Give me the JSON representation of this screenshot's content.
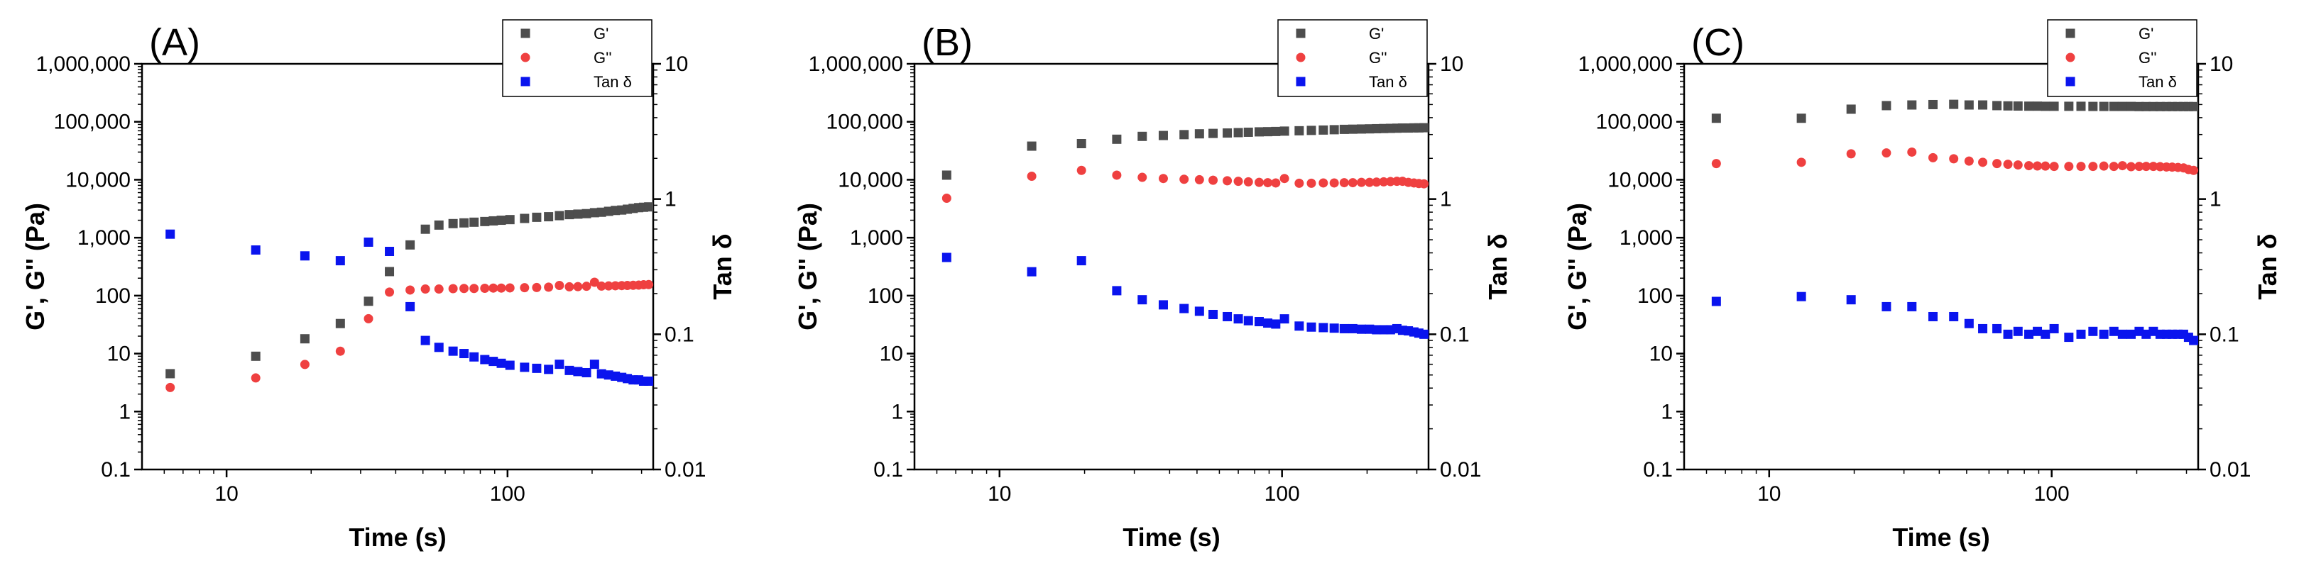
{
  "colors": {
    "gprime": "#4d4d4d",
    "gdouble": "#ef4040",
    "tan": "#0a14ee"
  },
  "legend": {
    "gprime": "G'",
    "gdouble": "G''",
    "tan": "Tan δ"
  },
  "chart_data": [
    {
      "type": "scatter",
      "panel_label": "(A)",
      "xlabel": "Time (s)",
      "ylabel": "G', G'' (Pa)",
      "y2label": "Tan δ",
      "xscale": "log",
      "yscale": "log",
      "y2scale": "log",
      "xlim": [
        5,
        330
      ],
      "ylim": [
        0.1,
        1000000
      ],
      "y2lim": [
        0.01,
        10
      ],
      "xticks": [
        10,
        100
      ],
      "xtick_labels": [
        "10",
        "100"
      ],
      "yticks": [
        0.1,
        1,
        10,
        100,
        1000,
        10000,
        100000,
        1000000
      ],
      "ytick_labels": [
        "0.1",
        "1",
        "10",
        "100",
        "1,000",
        "10,000",
        "100,000",
        "1,000,000"
      ],
      "y2ticks": [
        0.01,
        0.1,
        1,
        10
      ],
      "y2tick_labels": [
        "0.01",
        "0.1",
        "1",
        "10"
      ],
      "legend_position": "top-right",
      "series": [
        {
          "name": "G'",
          "axis": "left",
          "marker": "square",
          "color_key": "gprime",
          "x": [
            6.3,
            12.7,
            19,
            25.4,
            32,
            38,
            45,
            51,
            57,
            64,
            70,
            76,
            83,
            89,
            95,
            102,
            115,
            127,
            140,
            153,
            166,
            178,
            191,
            204,
            216,
            229,
            242,
            255,
            267,
            280,
            293,
            305,
            318
          ],
          "y": [
            4.5,
            9,
            18,
            33,
            80,
            260,
            750,
            1400,
            1650,
            1750,
            1800,
            1850,
            1900,
            1950,
            2000,
            2050,
            2150,
            2250,
            2300,
            2400,
            2500,
            2550,
            2600,
            2700,
            2750,
            2850,
            2950,
            3000,
            3100,
            3200,
            3300,
            3350,
            3400
          ]
        },
        {
          "name": "G''",
          "axis": "left",
          "marker": "circle",
          "color_key": "gdouble",
          "x": [
            6.3,
            12.7,
            19,
            25.4,
            32,
            38,
            45,
            51,
            57,
            64,
            70,
            76,
            83,
            89,
            95,
            102,
            115,
            127,
            140,
            153,
            166,
            178,
            191,
            204,
            216,
            229,
            242,
            255,
            267,
            280,
            293,
            305,
            318
          ],
          "y": [
            2.6,
            3.8,
            6.5,
            11,
            40,
            115,
            125,
            130,
            130,
            132,
            133,
            133,
            134,
            135,
            135,
            136,
            137,
            138,
            140,
            150,
            142,
            143,
            145,
            170,
            146,
            147,
            148,
            149,
            150,
            151,
            152,
            154,
            155
          ]
        },
        {
          "name": "Tan δ",
          "axis": "right",
          "marker": "square",
          "color_key": "tan",
          "x": [
            6.3,
            12.7,
            19,
            25.4,
            32,
            38,
            45,
            51,
            57,
            64,
            70,
            76,
            83,
            89,
            95,
            102,
            115,
            127,
            140,
            153,
            166,
            178,
            191,
            204,
            216,
            229,
            242,
            255,
            267,
            280,
            293,
            305,
            318
          ],
          "y": [
            0.55,
            0.42,
            0.38,
            0.35,
            0.48,
            0.41,
            0.16,
            0.09,
            0.08,
            0.075,
            0.072,
            0.068,
            0.065,
            0.063,
            0.061,
            0.059,
            0.057,
            0.056,
            0.055,
            0.06,
            0.054,
            0.053,
            0.052,
            0.06,
            0.051,
            0.05,
            0.049,
            0.048,
            0.047,
            0.046,
            0.046,
            0.045,
            0.045
          ]
        }
      ]
    },
    {
      "type": "scatter",
      "panel_label": "(B)",
      "xlabel": "Time (s)",
      "ylabel": "G', G'' (Pa)",
      "y2label": "Tan δ",
      "xscale": "log",
      "yscale": "log",
      "y2scale": "log",
      "xlim": [
        5,
        330
      ],
      "ylim": [
        0.1,
        1000000
      ],
      "y2lim": [
        0.01,
        10
      ],
      "xticks": [
        10,
        100
      ],
      "xtick_labels": [
        "10",
        "100"
      ],
      "yticks": [
        0.1,
        1,
        10,
        100,
        1000,
        10000,
        100000,
        1000000
      ],
      "ytick_labels": [
        "0.1",
        "1",
        "10",
        "100",
        "1,000",
        "10,000",
        "100,000",
        "1,000,000"
      ],
      "y2ticks": [
        0.01,
        0.1,
        1,
        10
      ],
      "y2tick_labels": [
        "0.01",
        "0.1",
        "1",
        "10"
      ],
      "legend_position": "top-right",
      "series": [
        {
          "name": "G'",
          "axis": "left",
          "marker": "square",
          "color_key": "gprime",
          "x": [
            6.5,
            13,
            19.5,
            26,
            32,
            38,
            45,
            51,
            57,
            64,
            70,
            76,
            83,
            89,
            95,
            102,
            115,
            127,
            140,
            153,
            166,
            178,
            191,
            204,
            216,
            229,
            242,
            255,
            267,
            280,
            293,
            305,
            318
          ],
          "y": [
            12000,
            38000,
            42000,
            50000,
            56000,
            58000,
            60000,
            62000,
            63000,
            64000,
            65000,
            66000,
            67000,
            67500,
            68000,
            69000,
            70000,
            71000,
            72000,
            73000,
            74000,
            74500,
            75000,
            75500,
            76000,
            76500,
            77000,
            77500,
            78000,
            78000,
            78500,
            78500,
            79000
          ]
        },
        {
          "name": "G''",
          "axis": "left",
          "marker": "circle",
          "color_key": "gdouble",
          "x": [
            6.5,
            13,
            19.5,
            26,
            32,
            38,
            45,
            51,
            57,
            64,
            70,
            76,
            83,
            89,
            95,
            102,
            115,
            127,
            140,
            153,
            166,
            178,
            191,
            204,
            216,
            229,
            242,
            255,
            267,
            280,
            293,
            305,
            318
          ],
          "y": [
            4800,
            11500,
            14500,
            12000,
            11000,
            10500,
            10200,
            10000,
            9800,
            9600,
            9400,
            9200,
            9000,
            8900,
            8800,
            10500,
            8700,
            8700,
            8800,
            8800,
            8900,
            8900,
            9000,
            9000,
            9100,
            9200,
            9300,
            9400,
            9400,
            9000,
            8800,
            8600,
            8500
          ]
        },
        {
          "name": "Tan δ",
          "axis": "right",
          "marker": "square",
          "color_key": "tan",
          "x": [
            6.5,
            13,
            19.5,
            26,
            32,
            38,
            45,
            51,
            57,
            64,
            70,
            76,
            83,
            89,
            95,
            102,
            115,
            127,
            140,
            153,
            166,
            178,
            191,
            204,
            216,
            229,
            242,
            255,
            267,
            280,
            293,
            305,
            318
          ],
          "y": [
            0.37,
            0.29,
            0.35,
            0.21,
            0.18,
            0.165,
            0.155,
            0.148,
            0.14,
            0.135,
            0.13,
            0.126,
            0.124,
            0.121,
            0.119,
            0.13,
            0.115,
            0.113,
            0.112,
            0.111,
            0.11,
            0.11,
            0.109,
            0.109,
            0.108,
            0.108,
            0.108,
            0.11,
            0.107,
            0.106,
            0.104,
            0.102,
            0.1
          ]
        }
      ]
    },
    {
      "type": "scatter",
      "panel_label": "(C)",
      "xlabel": "Time (s)",
      "ylabel": "G', G'' (Pa)",
      "y2label": "Tan δ",
      "xscale": "log",
      "yscale": "log",
      "y2scale": "log",
      "xlim": [
        5,
        330
      ],
      "ylim": [
        0.1,
        1000000
      ],
      "y2lim": [
        0.01,
        10
      ],
      "xticks": [
        10,
        100
      ],
      "xtick_labels": [
        "10",
        "100"
      ],
      "yticks": [
        0.1,
        1,
        10,
        100,
        1000,
        10000,
        100000,
        1000000
      ],
      "ytick_labels": [
        "0.1",
        "1",
        "10",
        "100",
        "1,000",
        "10,000",
        "100,000",
        "1,000,000"
      ],
      "y2ticks": [
        0.01,
        0.1,
        1,
        10
      ],
      "y2tick_labels": [
        "0.01",
        "0.1",
        "1",
        "10"
      ],
      "legend_position": "top-right",
      "series": [
        {
          "name": "G'",
          "axis": "left",
          "marker": "square",
          "color_key": "gprime",
          "x": [
            6.5,
            13,
            19.5,
            26,
            32,
            38,
            45,
            51,
            57,
            64,
            70,
            76,
            83,
            89,
            95,
            102,
            115,
            127,
            140,
            153,
            166,
            178,
            191,
            204,
            216,
            229,
            242,
            255,
            267,
            280,
            293,
            305,
            318
          ],
          "y": [
            115000,
            115000,
            165000,
            190000,
            195000,
            198000,
            200000,
            195000,
            195000,
            190000,
            188000,
            187000,
            186000,
            186000,
            185000,
            185000,
            185000,
            185000,
            184000,
            184000,
            184000,
            184000,
            184000,
            183000,
            183000,
            183000,
            183000,
            183000,
            183000,
            183000,
            183000,
            183000,
            183000
          ]
        },
        {
          "name": "G''",
          "axis": "left",
          "marker": "circle",
          "color_key": "gdouble",
          "x": [
            6.5,
            13,
            19.5,
            26,
            32,
            38,
            45,
            51,
            57,
            64,
            70,
            76,
            83,
            89,
            95,
            102,
            115,
            127,
            140,
            153,
            166,
            178,
            191,
            204,
            216,
            229,
            242,
            255,
            267,
            280,
            293,
            305,
            318
          ],
          "y": [
            19000,
            20000,
            28000,
            29000,
            30000,
            24000,
            23000,
            21000,
            20000,
            19000,
            18500,
            18000,
            17500,
            17300,
            17200,
            17000,
            17000,
            17000,
            17000,
            17200,
            17000,
            17500,
            16800,
            17000,
            17000,
            17000,
            16800,
            16600,
            16500,
            16300,
            16000,
            15000,
            14500
          ]
        },
        {
          "name": "Tan δ",
          "axis": "right",
          "marker": "square",
          "color_key": "tan",
          "x": [
            6.5,
            13,
            19.5,
            26,
            32,
            38,
            45,
            51,
            57,
            64,
            70,
            76,
            83,
            89,
            95,
            102,
            115,
            127,
            140,
            153,
            166,
            178,
            191,
            204,
            216,
            229,
            242,
            255,
            267,
            280,
            293,
            305,
            318
          ],
          "y": [
            0.175,
            0.19,
            0.18,
            0.16,
            0.16,
            0.135,
            0.135,
            0.12,
            0.11,
            0.11,
            0.1,
            0.105,
            0.1,
            0.105,
            0.1,
            0.11,
            0.095,
            0.1,
            0.105,
            0.1,
            0.105,
            0.1,
            0.1,
            0.105,
            0.1,
            0.105,
            0.1,
            0.1,
            0.1,
            0.1,
            0.1,
            0.095,
            0.09
          ]
        }
      ]
    }
  ]
}
